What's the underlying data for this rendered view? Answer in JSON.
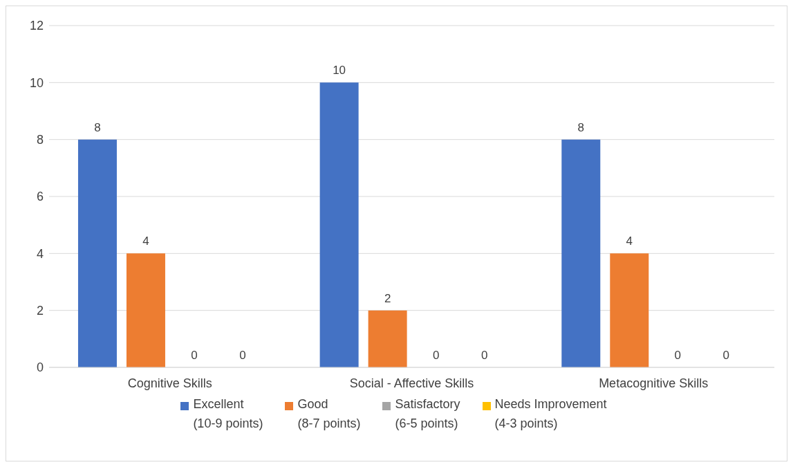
{
  "chart_data": {
    "type": "bar",
    "categories": [
      "Cognitive Skills",
      "Social - Affective Skills",
      "Metacognitive Skills"
    ],
    "series": [
      {
        "name": "Excellent\n(10-9 points)",
        "color": "#4472c4",
        "values": [
          8,
          10,
          8
        ]
      },
      {
        "name": "Good\n(8-7 points)",
        "color": "#ed7d31",
        "values": [
          4,
          2,
          4
        ]
      },
      {
        "name": "Satisfactory\n(6-5 points)",
        "color": "#a5a5a5",
        "values": [
          0,
          0,
          0
        ]
      },
      {
        "name": "Needs Improvement\n(4-3 points)",
        "color": "#ffc000",
        "values": [
          0,
          0,
          0
        ]
      }
    ],
    "ylim": [
      0,
      12
    ],
    "yticks": [
      0,
      2,
      4,
      6,
      8,
      10,
      12
    ],
    "grid": "y",
    "legend": "bottom",
    "data_labels": true
  }
}
